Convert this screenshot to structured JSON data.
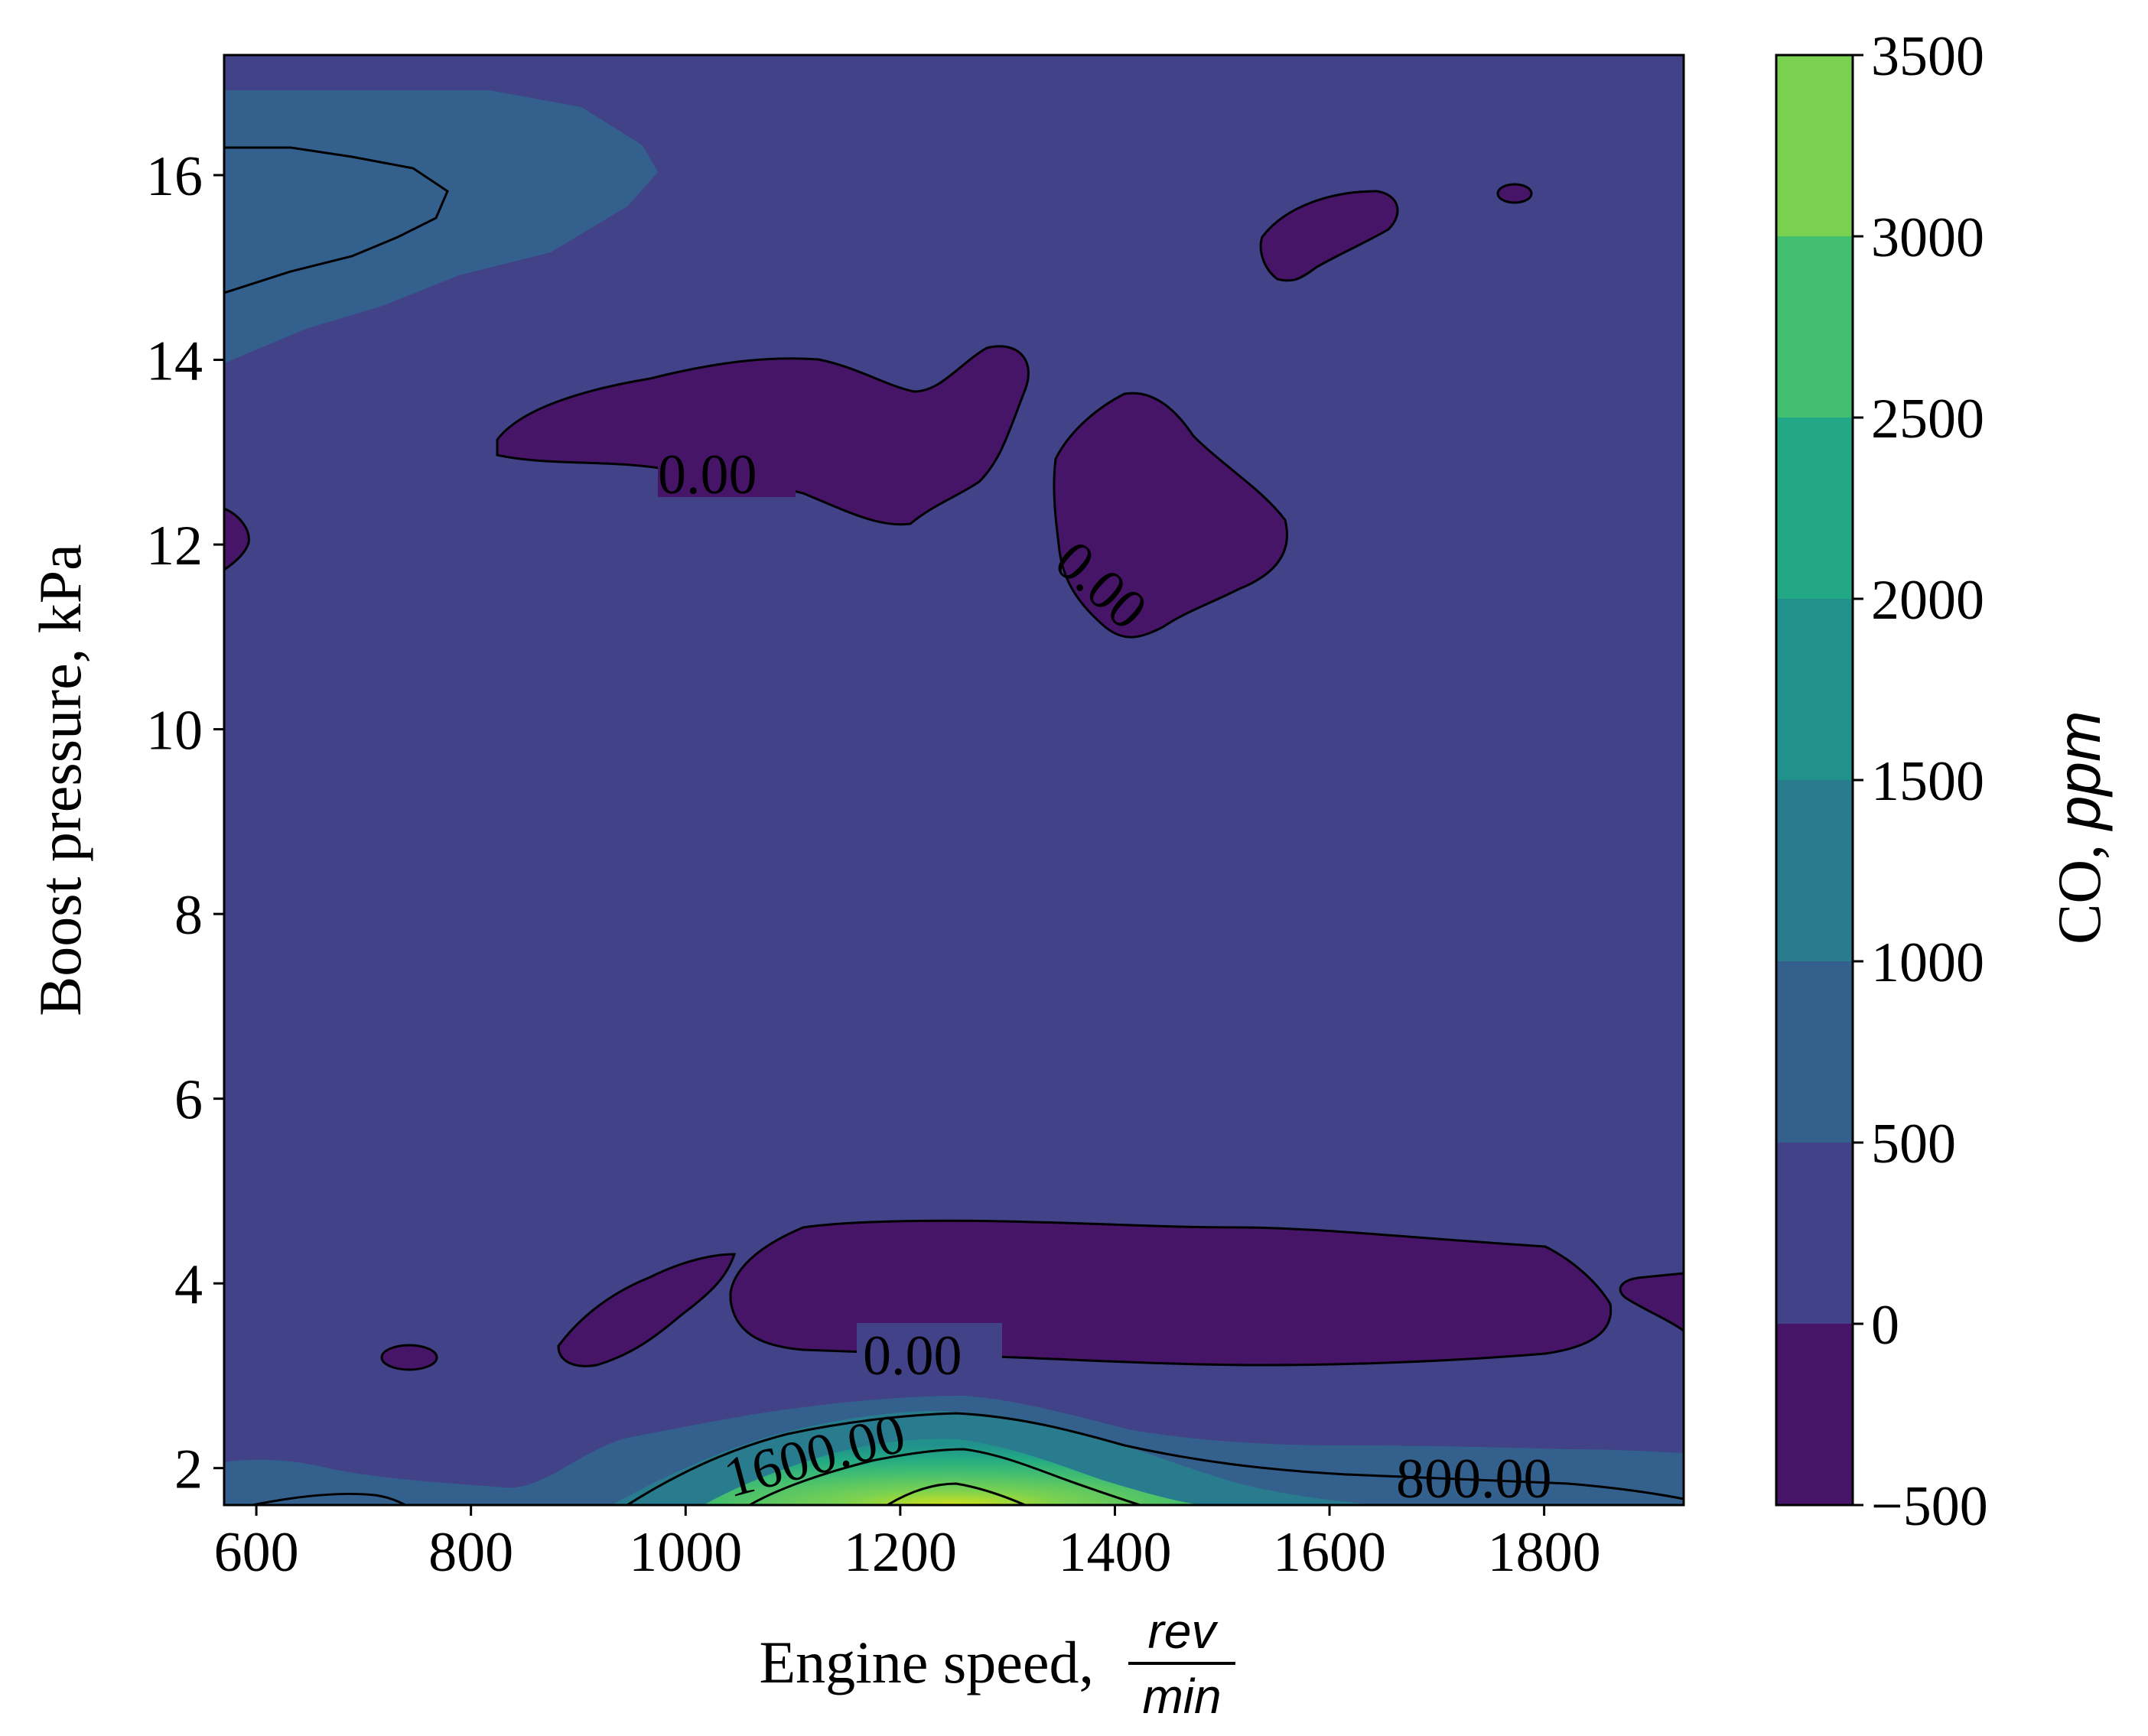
{
  "chart_data": {
    "type": "contourf",
    "xlabel": "Engine speed,",
    "xlabel_unit_num": "rev",
    "xlabel_unit_den": "min",
    "ylabel": "Boost pressure, kPa",
    "xlim": [
      570,
      1930
    ],
    "ylim": [
      1.6,
      17.3
    ],
    "x_ticks": [
      "600",
      "800",
      "1000",
      "1200",
      "1400",
      "1600",
      "1800"
    ],
    "y_ticks": [
      "2",
      "4",
      "6",
      "8",
      "10",
      "12",
      "14",
      "16"
    ],
    "colorbar": {
      "label": "CO,",
      "label_unit": "ppm",
      "levels": [
        -500,
        0,
        500,
        1000,
        1500,
        2000,
        2500,
        3000,
        3500
      ],
      "tick_labels": [
        "−500",
        "0",
        "500",
        "1000",
        "1500",
        "2000",
        "2500",
        "3000",
        "3500"
      ],
      "colors": [
        "#471567",
        "#414287",
        "#34608d",
        "#297b8e",
        "#21918c",
        "#22a884",
        "#42be71",
        "#7ad151",
        "#d0e11c"
      ]
    },
    "background_level_color": "#414287",
    "regions": [
      {
        "band": "0-500",
        "color": "#414287",
        "desc": "background"
      },
      {
        "band": "500-1000",
        "color": "#34608d",
        "desc": "top-left"
      },
      {
        "band": "-500-0",
        "color": "#471567",
        "desc": "upper-mid island near 1000-1250 rev/min, 12.3-14 kPa"
      },
      {
        "band": "-500-0",
        "color": "#471567",
        "desc": "island near 1350-1500 rev/min, 10.5-13.6 kPa"
      },
      {
        "band": "-500-0",
        "color": "#471567",
        "desc": "band near 900-1900 rev/min, 3.2-4.7 kPa"
      },
      {
        "band": "1000-3500",
        "color": "#7ad151",
        "desc": "peak near 1250 rev/min, 1.6 kPa"
      }
    ],
    "contour_labels": [
      "0.00",
      "0.00",
      "0.00",
      "1600.00",
      "800.00"
    ]
  }
}
